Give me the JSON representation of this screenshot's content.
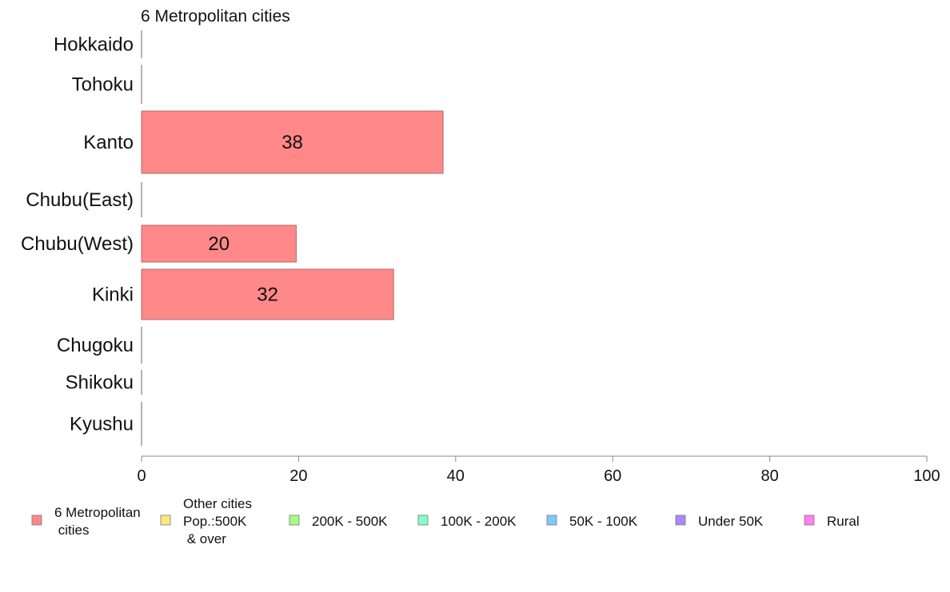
{
  "chart_data": {
    "type": "bar",
    "orientation": "horizontal",
    "title": "6 Metropolitan cities",
    "categories": [
      "Hokkaido",
      "Tohoku",
      "Kanto",
      "Chubu(East)",
      "Chubu(West)",
      "Kinki",
      "Chugoku",
      "Shikoku",
      "Kyushu"
    ],
    "series": [
      {
        "name": "6 Metropolitan cities",
        "color": "#ff8888",
        "values": [
          0,
          0,
          38.4,
          0,
          19.7,
          32.1,
          0,
          0,
          0
        ],
        "data_labels": [
          "",
          "",
          "38",
          "",
          "20",
          "32",
          "",
          "",
          ""
        ]
      }
    ],
    "xlim": [
      0,
      100
    ],
    "x_ticks": [
      0,
      20,
      40,
      60,
      80,
      100
    ],
    "grid": false,
    "legend_position": "bottom",
    "legend": [
      {
        "label": "6 Metropolitan\n cities",
        "color": "#ff8888"
      },
      {
        "label": "Other cities\nPop.:500K\n & over",
        "color": "#ffe680"
      },
      {
        "label": "200K - 500K",
        "color": "#a6ff80"
      },
      {
        "label": "100K - 200K",
        "color": "#80ffc8"
      },
      {
        "label": "50K - 100K",
        "color": "#80c8ff"
      },
      {
        "label": "Under 50K",
        "color": "#aa88ff"
      },
      {
        "label": "Rural",
        "color": "#ff80ee"
      }
    ]
  }
}
